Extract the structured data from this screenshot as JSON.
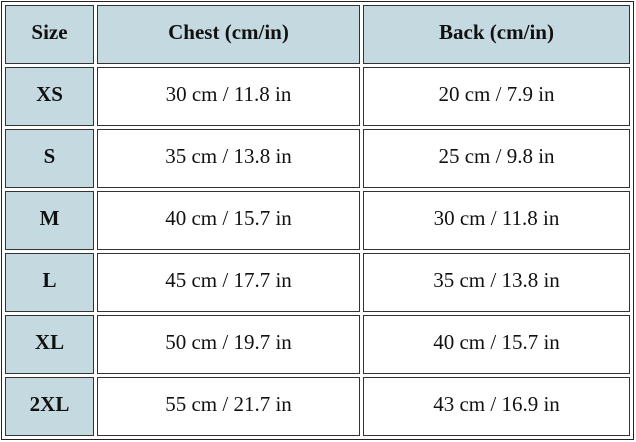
{
  "table": {
    "header": [
      "Size",
      "Chest (cm/in)",
      "Back (cm/in)"
    ],
    "rows": [
      [
        "XS",
        "30 cm / 11.8 in",
        "20 cm / 7.9 in"
      ],
      [
        "S",
        "35 cm / 13.8 in",
        "25 cm / 9.8 in"
      ],
      [
        "M",
        "40 cm / 15.7 in",
        "30 cm / 11.8 in"
      ],
      [
        "L",
        "45 cm / 17.7 in",
        "35 cm / 13.8 in"
      ],
      [
        "XL",
        "50 cm / 19.7 in",
        "40 cm / 15.7 in"
      ],
      [
        "2XL",
        "55 cm / 21.7 in",
        "43 cm / 16.9 in"
      ]
    ]
  }
}
